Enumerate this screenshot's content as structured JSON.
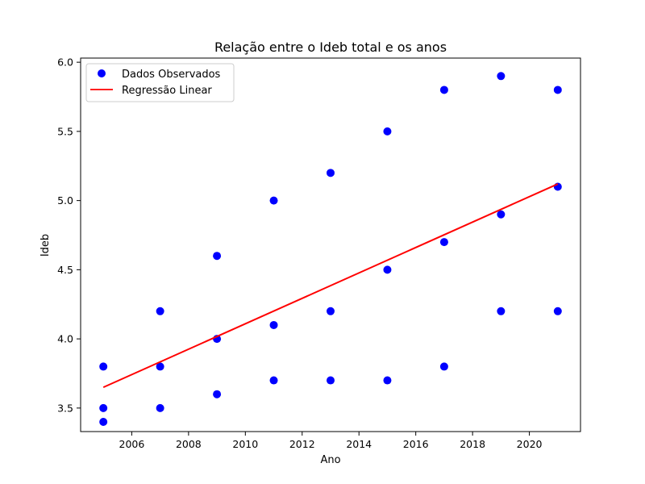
{
  "chart_data": {
    "type": "scatter",
    "title": "Relação entre o Ideb total e os anos",
    "xlabel": "Ano",
    "ylabel": "Ideb",
    "xlim": [
      2004.2,
      2021.8
    ],
    "ylim": [
      3.33,
      6.03
    ],
    "xticks": [
      2006,
      2008,
      2010,
      2012,
      2014,
      2016,
      2018,
      2020
    ],
    "yticks": [
      3.5,
      4.0,
      4.5,
      5.0,
      5.5,
      6.0
    ],
    "xtick_labels": [
      "2006",
      "2008",
      "2010",
      "2012",
      "2014",
      "2016",
      "2018",
      "2020"
    ],
    "ytick_labels": [
      "3.5",
      "4.0",
      "4.5",
      "5.0",
      "5.5",
      "6.0"
    ],
    "grid": false,
    "legend_position": "top-left",
    "series": [
      {
        "name": "Dados Observados",
        "kind": "scatter",
        "color": "#0000ff",
        "points": [
          [
            2005,
            3.8
          ],
          [
            2005,
            3.5
          ],
          [
            2005,
            3.4
          ],
          [
            2007,
            4.2
          ],
          [
            2007,
            3.8
          ],
          [
            2007,
            3.5
          ],
          [
            2009,
            4.6
          ],
          [
            2009,
            4.0
          ],
          [
            2009,
            3.6
          ],
          [
            2011,
            5.0
          ],
          [
            2011,
            4.1
          ],
          [
            2011,
            3.7
          ],
          [
            2013,
            5.2
          ],
          [
            2013,
            4.2
          ],
          [
            2013,
            3.7
          ],
          [
            2015,
            5.5
          ],
          [
            2015,
            4.5
          ],
          [
            2015,
            3.7
          ],
          [
            2017,
            5.8
          ],
          [
            2017,
            4.7
          ],
          [
            2017,
            3.8
          ],
          [
            2019,
            5.9
          ],
          [
            2019,
            4.9
          ],
          [
            2019,
            4.2
          ],
          [
            2021,
            5.8
          ],
          [
            2021,
            5.1
          ],
          [
            2021,
            4.2
          ]
        ]
      },
      {
        "name": "Regressão Linear",
        "kind": "line",
        "color": "#ff0000",
        "points": [
          [
            2005,
            3.65
          ],
          [
            2021,
            5.12
          ]
        ]
      }
    ]
  }
}
